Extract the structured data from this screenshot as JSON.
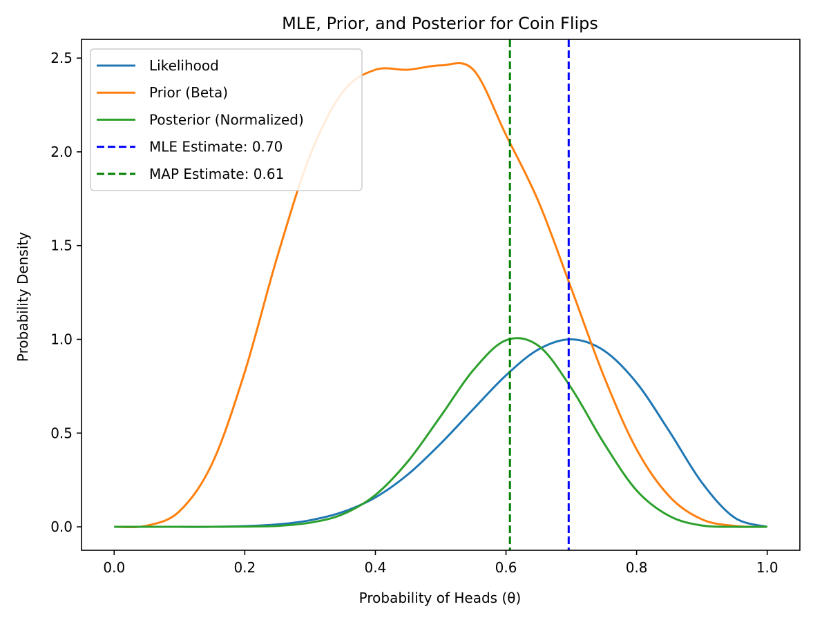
{
  "chart_data": {
    "type": "line",
    "title": "MLE, Prior, and Posterior for Coin Flips",
    "xlabel": "Probability of Heads (θ)",
    "ylabel": "Probability Density",
    "xlim": [
      -0.05,
      1.05
    ],
    "ylim": [
      -0.125,
      2.6
    ],
    "xticks": [
      0.0,
      0.2,
      0.4,
      0.6,
      0.8,
      1.0
    ],
    "xtick_labels": [
      "0.0",
      "0.2",
      "0.4",
      "0.6",
      "0.8",
      "1.0"
    ],
    "yticks": [
      0.0,
      0.5,
      1.0,
      1.5,
      2.0,
      2.5
    ],
    "ytick_labels": [
      "0.0",
      "0.5",
      "1.0",
      "1.5",
      "2.0",
      "2.5"
    ],
    "grid": false,
    "legend_position": "top-left",
    "series": [
      {
        "name": "Likelihood",
        "color": "#1f77b4",
        "style": "solid",
        "description": "theta^7 (1-theta)^3 scaled to peak 1.0 at theta = 0.70",
        "x": [
          0.0,
          0.05,
          0.1,
          0.15,
          0.2,
          0.25,
          0.3,
          0.35,
          0.4,
          0.45,
          0.5,
          0.55,
          0.6,
          0.65,
          0.7,
          0.75,
          0.8,
          0.85,
          0.9,
          0.95,
          1.0
        ],
        "y": [
          0.0,
          0.0,
          0.0,
          0.0,
          0.004,
          0.013,
          0.035,
          0.079,
          0.157,
          0.28,
          0.444,
          0.628,
          0.808,
          0.947,
          1.0,
          0.94,
          0.768,
          0.51,
          0.236,
          0.049,
          0.0
        ]
      },
      {
        "name": "Prior (Beta)",
        "color": "#ff7f0e",
        "style": "solid",
        "description": "Beta(5,5) density",
        "x": [
          0.0,
          0.05,
          0.1,
          0.15,
          0.2,
          0.25,
          0.3,
          0.35,
          0.4,
          0.45,
          0.5,
          0.55,
          0.6,
          0.65,
          0.7,
          0.75,
          0.8,
          0.85,
          0.9,
          0.95,
          1.0
        ],
        "y": [
          0.0,
          0.006,
          0.083,
          0.337,
          0.826,
          1.443,
          1.981,
          2.319,
          2.438,
          2.438,
          2.461,
          2.438,
          2.09,
          1.733,
          1.271,
          0.802,
          0.413,
          0.163,
          0.04,
          0.005,
          0.0
        ]
      },
      {
        "name": "Posterior (Normalized)",
        "color": "#2ca02c",
        "style": "solid",
        "description": "Likelihood x prior, Beta(12,8) shape scaled to peak 1.0 at theta = 0.61",
        "x": [
          0.0,
          0.05,
          0.1,
          0.15,
          0.2,
          0.25,
          0.3,
          0.35,
          0.4,
          0.45,
          0.5,
          0.55,
          0.6,
          0.65,
          0.7,
          0.75,
          0.8,
          0.85,
          0.9,
          0.95,
          1.0
        ],
        "y": [
          0.0,
          0.0,
          0.0,
          0.0,
          0.001,
          0.005,
          0.022,
          0.067,
          0.17,
          0.35,
          0.59,
          0.836,
          0.995,
          0.965,
          0.74,
          0.446,
          0.194,
          0.058,
          0.007,
          0.0,
          0.0
        ]
      }
    ],
    "vlines": [
      {
        "name": "MLE Estimate: 0.70",
        "x": 0.696,
        "color": "#0000ff",
        "style": "dashed"
      },
      {
        "name": "MAP Estimate: 0.61",
        "x": 0.606,
        "color": "#008000",
        "style": "dashed"
      }
    ]
  }
}
